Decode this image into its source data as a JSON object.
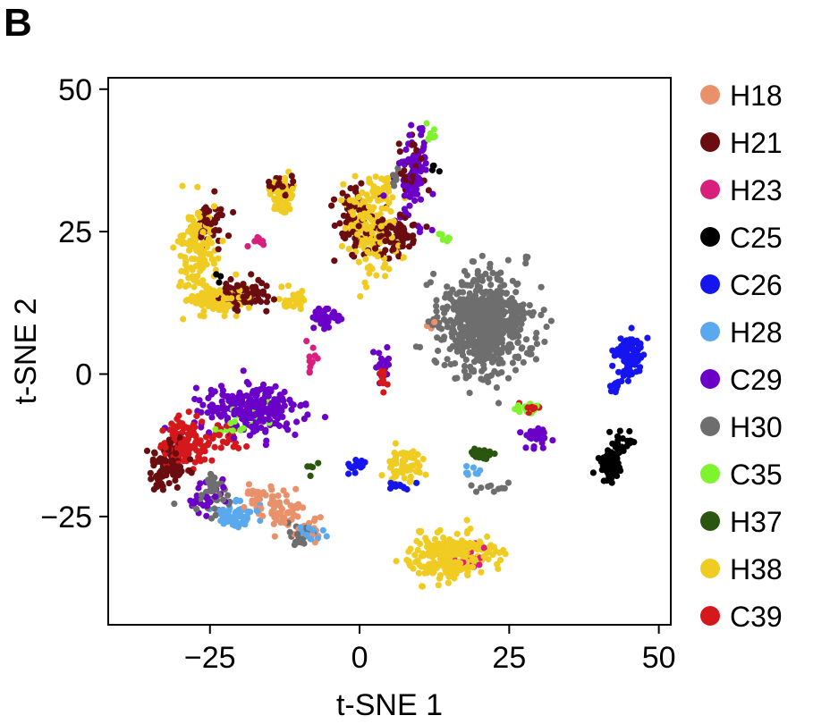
{
  "panel_label": "B",
  "chart_data": {
    "type": "scatter",
    "xlabel": "t-SNE 1",
    "ylabel": "t-SNE 2",
    "xlim": [
      -42,
      52
    ],
    "ylim": [
      -44,
      52
    ],
    "xticks": [
      -25,
      0,
      25,
      50
    ],
    "yticks": [
      -25,
      0,
      25,
      50
    ],
    "xtick_labels": [
      "−25",
      "0",
      "25",
      "50"
    ],
    "ytick_labels": [
      "−25",
      "0",
      "25",
      "50"
    ],
    "grid": false,
    "legend_position": "right",
    "series": [
      {
        "name": "H18",
        "color": "#e8916a",
        "clusters": [
          [
            -13,
            -24,
            3,
            2.5,
            60
          ],
          [
            -17,
            -21,
            2,
            1.5,
            25
          ],
          [
            12,
            9,
            1,
            1,
            6
          ],
          [
            -9,
            -27,
            2,
            2,
            20
          ]
        ]
      },
      {
        "name": "H21",
        "color": "#6b0d10",
        "clusters": [
          [
            -25,
            27,
            2,
            3,
            50
          ],
          [
            -19,
            14,
            4,
            2,
            80
          ],
          [
            -32,
            -16,
            2.5,
            4,
            90
          ],
          [
            -13,
            33,
            2,
            2,
            25
          ],
          [
            -1,
            28,
            3,
            5,
            60
          ],
          [
            6,
            24,
            3,
            3,
            60
          ],
          [
            9,
            36,
            2,
            4,
            30
          ]
        ]
      },
      {
        "name": "H23",
        "color": "#d81f7d",
        "clusters": [
          [
            -17,
            23,
            1.5,
            1.2,
            10
          ],
          [
            -8,
            3,
            1,
            4,
            12
          ],
          [
            19,
            -32,
            2,
            2,
            20
          ]
        ]
      },
      {
        "name": "C25",
        "color": "#000000",
        "clusters": [
          [
            42,
            -16,
            1.5,
            2.5,
            70
          ],
          [
            44,
            -12,
            1.5,
            1.5,
            20
          ],
          [
            12,
            36,
            1,
            1,
            4
          ],
          [
            -23,
            17,
            1,
            1,
            3
          ]
        ]
      },
      {
        "name": "C26",
        "color": "#1515f0",
        "clusters": [
          [
            45,
            3,
            2,
            3,
            90
          ],
          [
            43,
            -2,
            1,
            1.5,
            15
          ],
          [
            -1,
            -16,
            1.5,
            1.2,
            15
          ],
          [
            7,
            -20,
            2,
            1,
            10
          ]
        ]
      },
      {
        "name": "H28",
        "color": "#5aa8ee",
        "clusters": [
          [
            -21,
            -25,
            2.5,
            1.8,
            60
          ],
          [
            -8,
            -28,
            2,
            1.5,
            15
          ],
          [
            19,
            -17,
            1,
            1,
            8
          ]
        ]
      },
      {
        "name": "C29",
        "color": "#6b00c8",
        "clusters": [
          [
            -18,
            -6,
            7,
            3.5,
            260
          ],
          [
            -6,
            10,
            2,
            1.5,
            40
          ],
          [
            9,
            35,
            2,
            7,
            80
          ],
          [
            30,
            -11,
            2,
            2,
            30
          ],
          [
            4,
            1,
            1,
            4,
            15
          ],
          [
            -25,
            -22,
            3,
            3,
            30
          ]
        ]
      },
      {
        "name": "H30",
        "color": "#6e6e6e",
        "clusters": [
          [
            21,
            9,
            6,
            7,
            650
          ],
          [
            -24,
            -21,
            3,
            3,
            40
          ],
          [
            -10,
            -28,
            2,
            2,
            20
          ],
          [
            22,
            -20,
            2,
            1,
            10
          ],
          [
            6,
            34,
            1,
            1.5,
            8
          ]
        ]
      },
      {
        "name": "C35",
        "color": "#7ff32e",
        "clusters": [
          [
            28,
            -6,
            2,
            0.8,
            25
          ],
          [
            -20,
            -8,
            4,
            3,
            20
          ],
          [
            12,
            42,
            1,
            2,
            8
          ],
          [
            14,
            24,
            1,
            1,
            6
          ]
        ]
      },
      {
        "name": "H37",
        "color": "#2a5610",
        "clusters": [
          [
            20,
            -14,
            2,
            0.8,
            30
          ],
          [
            -8,
            -16,
            1,
            1,
            5
          ]
        ]
      },
      {
        "name": "H38",
        "color": "#f0cc22",
        "clusters": [
          [
            -27,
            22,
            2.5,
            7,
            130
          ],
          [
            -24,
            13,
            4,
            2,
            120
          ],
          [
            -13,
            31,
            1.5,
            2.5,
            60
          ],
          [
            2,
            26,
            4,
            6,
            150
          ],
          [
            15,
            -32,
            6,
            3,
            240
          ],
          [
            7,
            -16,
            3,
            2.5,
            60
          ],
          [
            -11,
            13,
            2,
            1.5,
            30
          ],
          [
            4,
            33,
            1,
            2,
            15
          ]
        ]
      },
      {
        "name": "C39",
        "color": "#d4181b",
        "clusters": [
          [
            -29,
            -12,
            3,
            3.5,
            120
          ],
          [
            4,
            -1,
            1,
            2,
            15
          ],
          [
            29,
            -6,
            1.5,
            0.8,
            12
          ],
          [
            -22,
            -11,
            2,
            2,
            25
          ]
        ]
      }
    ]
  }
}
